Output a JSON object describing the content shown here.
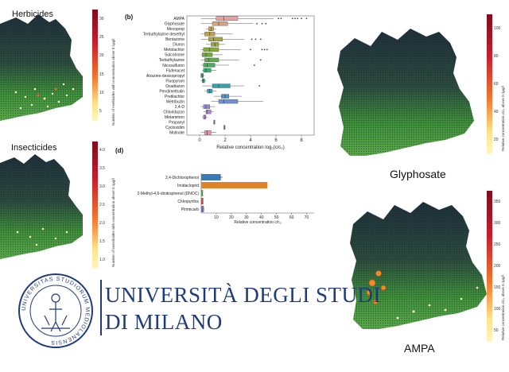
{
  "headings": {
    "herbicides": "Herbicides",
    "insecticides": "Insecticides",
    "glyphosate": "Glyphosate",
    "ampa": "AMPA"
  },
  "colorbars": {
    "herbicides": {
      "ticks": [
        "30",
        "25",
        "20",
        "15",
        "10",
        "5"
      ],
      "title": "Number of Herbicides with concentration above 0.1µg/l"
    },
    "insecticides": {
      "ticks": [
        "4.0",
        "3.5",
        "3.0",
        "2.5",
        "2.0",
        "1.5",
        "1.0"
      ],
      "title": "Number of Insecticides with concentration above 0.1µg/l"
    },
    "glyphosate": {
      "ticks": [
        "100",
        "80",
        "60",
        "40",
        "20"
      ],
      "title": "Relative concentration c/c₀ above 0.1µg/l"
    },
    "ampa": {
      "ticks": [
        "350",
        "300",
        "250",
        "200",
        "150",
        "100",
        "50"
      ],
      "title": "Relative concentration c/c₀ above 0.1µg/l"
    }
  },
  "university": {
    "line1": "UNIVERSITÀ DEGLI STUDI",
    "line2": "DI MILANO",
    "seal_text": "UNIVERSITAS STUDIORUM MEDIOLANENSIS"
  },
  "colors": {
    "map_green": "#3f8f3a",
    "map_dark": "#1e2f3a",
    "colorbar_low": "#fff6bf",
    "colorbar_high": "#7f0b1e",
    "brand_blue": "#1f3b7a"
  },
  "chart_data": [
    {
      "type": "box",
      "panel_label": "(b)",
      "xlabel": "Relative concentration log₂(c/c₀)",
      "xlim": [
        -1,
        9
      ],
      "xticks": [
        0,
        2,
        4,
        6,
        8
      ],
      "categories": [
        "AMPA",
        "Glyphosate",
        "Mecoprop",
        "Terbuthylazine desethyl",
        "Bentazone",
        "Diuron",
        "Metolachlor",
        "Sulcotrione",
        "Terbuthylazine",
        "Nicosulfuron",
        "Flufenacet",
        "Atrazine-desisopropyl",
        "Fluopyram",
        "Oxadiazon",
        "Pendimethalin",
        "Pretilachlor",
        "Metribuzin",
        "2,4-D",
        "Chloridazon",
        "Metamitron",
        "Propanyl",
        "Cycloxidim",
        "Molinate"
      ],
      "boxes": [
        {
          "q1": 1.3,
          "median": 1.9,
          "q3": 3.0,
          "wlo": 0.1,
          "whi": 5.8,
          "outliers": [
            6.2,
            6.4,
            7.3,
            7.5,
            7.7,
            8.0,
            8.4
          ],
          "color": "#e8a0a0"
        },
        {
          "q1": 1.0,
          "median": 1.5,
          "q3": 2.2,
          "wlo": 0.1,
          "whi": 4.2,
          "outliers": [
            4.5,
            4.9,
            5.2
          ],
          "color": "#d9a27a"
        },
        {
          "q1": 0.7,
          "median": 0.9,
          "q3": 1.1,
          "wlo": 0.5,
          "whi": 1.3,
          "outliers": [],
          "color": "#c9a35e"
        },
        {
          "q1": 0.4,
          "median": 0.8,
          "q3": 1.2,
          "wlo": 0.1,
          "whi": 2.6,
          "outliers": [],
          "color": "#b9a14f"
        },
        {
          "q1": 0.7,
          "median": 1.1,
          "q3": 1.8,
          "wlo": 0.1,
          "whi": 3.5,
          "outliers": [
            4.1,
            4.4,
            4.8
          ],
          "color": "#a9a442"
        },
        {
          "q1": 0.9,
          "median": 1.2,
          "q3": 1.5,
          "wlo": 0.5,
          "whi": 2.0,
          "outliers": [],
          "color": "#98a63a"
        },
        {
          "q1": 0.3,
          "median": 0.8,
          "q3": 1.5,
          "wlo": 0.1,
          "whi": 3.2,
          "outliers": [
            4.0,
            4.9,
            5.1,
            5.3
          ],
          "color": "#86a83a"
        },
        {
          "q1": 0.2,
          "median": 0.5,
          "q3": 1.0,
          "wlo": 0.1,
          "whi": 1.8,
          "outliers": [],
          "color": "#72aa3f"
        },
        {
          "q1": 0.4,
          "median": 0.7,
          "q3": 1.5,
          "wlo": 0.1,
          "whi": 3.1,
          "outliers": [
            4.8
          ],
          "color": "#5eab4c"
        },
        {
          "q1": 0.3,
          "median": 0.6,
          "q3": 1.2,
          "wlo": 0.1,
          "whi": 2.3,
          "outliers": [
            4.3
          ],
          "color": "#4aac5e"
        },
        {
          "q1": 0.3,
          "median": 0.5,
          "q3": 0.9,
          "wlo": 0.2,
          "whi": 1.3,
          "outliers": [],
          "color": "#3aab73"
        },
        {
          "q1": 0.1,
          "median": 0.2,
          "q3": 0.3,
          "wlo": 0.05,
          "whi": 0.4,
          "outliers": [],
          "color": "#33a888"
        },
        {
          "q1": 0.2,
          "median": 0.3,
          "q3": 0.4,
          "wlo": 0.1,
          "whi": 0.5,
          "outliers": [],
          "color": "#34a59a"
        },
        {
          "q1": 1.0,
          "median": 1.5,
          "q3": 2.4,
          "wlo": 0.2,
          "whi": 3.5,
          "outliers": [
            4.7
          ],
          "color": "#3aa1aa"
        },
        {
          "q1": 0.6,
          "median": 0.8,
          "q3": 1.0,
          "wlo": 0.4,
          "whi": 1.3,
          "outliers": [],
          "color": "#429cb8"
        },
        {
          "q1": 1.7,
          "median": 2.0,
          "q3": 2.3,
          "wlo": 1.1,
          "whi": 3.3,
          "outliers": [],
          "color": "#5196c4"
        },
        {
          "q1": 1.5,
          "median": 1.9,
          "q3": 3.0,
          "wlo": 0.9,
          "whi": 5.0,
          "outliers": [],
          "color": "#6e91cf"
        },
        {
          "q1": 0.3,
          "median": 0.5,
          "q3": 0.8,
          "wlo": 0.1,
          "whi": 1.2,
          "outliers": [],
          "color": "#8a8dd6"
        },
        {
          "q1": 0.5,
          "median": 0.6,
          "q3": 0.9,
          "wlo": 0.3,
          "whi": 1.1,
          "outliers": [],
          "color": "#a78ad8"
        },
        {
          "q1": 0.3,
          "median": 0.4,
          "q3": 0.5,
          "wlo": 0.2,
          "whi": 0.6,
          "outliers": [],
          "color": "#c087d6"
        },
        {
          "q1": 1.1,
          "median": 1.15,
          "q3": 1.2,
          "wlo": 1.1,
          "whi": 1.2,
          "outliers": [],
          "color": "#d486cf"
        },
        {
          "q1": 1.9,
          "median": 1.95,
          "q3": 2.0,
          "wlo": 1.9,
          "whi": 2.0,
          "outliers": [],
          "color": "#e187c3"
        },
        {
          "q1": 0.4,
          "median": 0.6,
          "q3": 0.9,
          "wlo": 0.1,
          "whi": 1.3,
          "outliers": [],
          "color": "#e88fb2"
        }
      ]
    },
    {
      "type": "bar",
      "orientation": "horizontal",
      "panel_label": "(d)",
      "xlabel": "Relative concentration c/c₀",
      "xlim": [
        0,
        75
      ],
      "xticks": [
        10,
        20,
        30,
        40,
        50,
        60,
        70
      ],
      "categories": [
        "2,4-Dichlorophenol",
        "Imidacloprid",
        "2-Methyl-4,6-dinitrophenol (DNOC)",
        "Chlorpyrifos",
        "Pirimicarb"
      ],
      "values": [
        13,
        44,
        1.2,
        1.4,
        1.8
      ],
      "errors": [
        1.2,
        0,
        0,
        0,
        0.2
      ],
      "colors": [
        "#3d7ab5",
        "#e0822a",
        "#4e9a55",
        "#c84040",
        "#7a6bb0"
      ]
    }
  ]
}
